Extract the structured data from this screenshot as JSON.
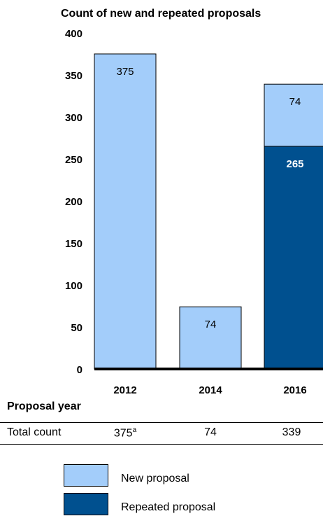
{
  "chart_data": {
    "type": "bar",
    "stacked": true,
    "title": "Count of new and repeated proposals",
    "categories": [
      "2012",
      "2014",
      "2016"
    ],
    "series": [
      {
        "name": "Repeated proposal",
        "color": "#00508f",
        "values": [
          0,
          0,
          265
        ],
        "labels": [
          "",
          "",
          "265"
        ]
      },
      {
        "name": "New proposal",
        "color": "#a3cdfa",
        "values": [
          375,
          74,
          74
        ],
        "labels": [
          "375",
          "74",
          "74"
        ]
      }
    ],
    "ylim": [
      0,
      400
    ],
    "yticks": [
      0,
      50,
      100,
      150,
      200,
      250,
      300,
      350,
      400
    ],
    "grid": false
  },
  "x_axis_title": "Proposal year",
  "total_row": {
    "label": "Total count",
    "values": [
      "375",
      "74",
      "339"
    ],
    "footnote_mark": "a"
  },
  "legend": [
    {
      "label": "New proposal",
      "color": "#a3cdfa"
    },
    {
      "label": "Repeated proposal",
      "color": "#00508f"
    }
  ]
}
